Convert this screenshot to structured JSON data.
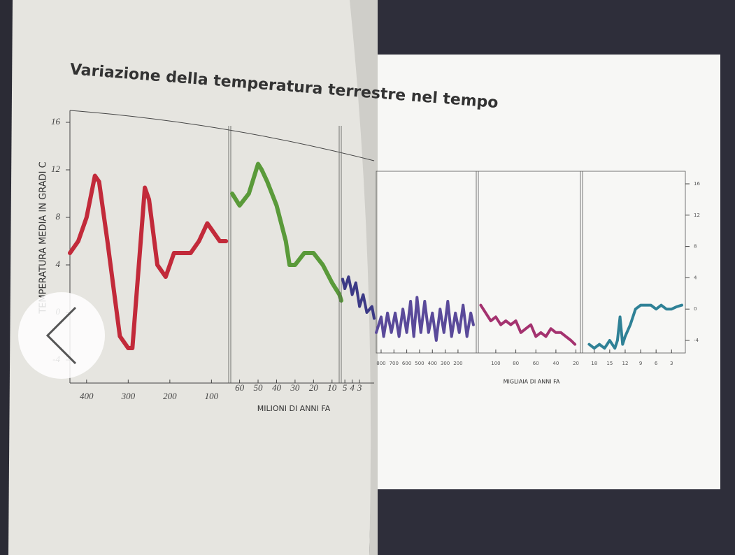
{
  "chart_data": {
    "type": "line",
    "title": "Variazione della temperatura terrestre nel tempo",
    "y_label": "TEMPERATURA MEDIA IN GRADI C",
    "x_label_millions": "MILIONI DI ANNI FA",
    "x_label_thousands": "MIGLIAIA DI ANNI FA",
    "ylim": [
      -6,
      17
    ],
    "yticks": [
      -4,
      0,
      4,
      8,
      12,
      16
    ],
    "panels": [
      {
        "color": "#c22a3a",
        "xlim": [
          440,
          62
        ],
        "xticks": [
          400,
          300,
          200,
          100
        ],
        "x": [
          440,
          420,
          400,
          380,
          370,
          350,
          320,
          300,
          290,
          270,
          260,
          250,
          230,
          210,
          190,
          170,
          150,
          130,
          110,
          100,
          80,
          65
        ],
        "values": [
          5,
          6,
          8,
          11.5,
          11,
          6,
          -2,
          -3,
          -3,
          6,
          10.5,
          9.5,
          4,
          3,
          5,
          5,
          5,
          6,
          7.5,
          7,
          6,
          6
        ]
      },
      {
        "color": "#5a9a3a",
        "xlim": [
          64,
          5
        ],
        "xticks": [
          60,
          50,
          40,
          30,
          20,
          10
        ],
        "x": [
          64,
          60,
          55,
          50,
          48,
          45,
          40,
          35,
          33,
          30,
          25,
          20,
          15,
          10,
          6,
          5
        ],
        "values": [
          10,
          9,
          10,
          12.5,
          12,
          11,
          9,
          6,
          4,
          4,
          5,
          5,
          4,
          2.5,
          1.5,
          1
        ]
      },
      {
        "color": "#3c3a86",
        "xlim": [
          5.3,
          1
        ],
        "xticks": [
          5,
          4,
          3
        ],
        "x": [
          5.3,
          5,
          4.5,
          4,
          3.5,
          3,
          2.5,
          2,
          1.3,
          1
        ],
        "values": [
          2.8,
          2,
          3,
          1.5,
          2.5,
          0.5,
          1.5,
          0,
          0.5,
          -0.5
        ]
      },
      {
        "color": "#5a4a9a",
        "xlim": [
          838,
          74
        ],
        "xticks": [
          800,
          700,
          600,
          500,
          400,
          300,
          200
        ],
        "x": [
          838,
          800,
          780,
          750,
          720,
          690,
          660,
          630,
          600,
          570,
          545,
          520,
          490,
          460,
          430,
          400,
          370,
          340,
          310,
          280,
          250,
          220,
          190,
          160,
          130,
          100,
          80
        ],
        "values": [
          -3,
          -1,
          -3.5,
          -0.5,
          -3,
          -0.5,
          -3.5,
          0,
          -3,
          1,
          -3.5,
          1.5,
          -3,
          1,
          -3,
          -0.5,
          -4,
          0,
          -3,
          1,
          -3.5,
          -0.5,
          -3,
          0.5,
          -3.5,
          -0.5,
          -2
        ]
      },
      {
        "color": "#a4326f",
        "xlim": [
          116,
          19
        ],
        "xticks": [
          100,
          80,
          60,
          40,
          20
        ],
        "x": [
          115,
          110,
          105,
          100,
          95,
          90,
          85,
          80,
          75,
          70,
          65,
          60,
          55,
          50,
          45,
          40,
          35,
          30,
          25,
          21
        ],
        "values": [
          0.5,
          -0.5,
          -1.5,
          -1,
          -2,
          -1.5,
          -2,
          -1.5,
          -3,
          -2.5,
          -2,
          -3.5,
          -3,
          -3.5,
          -2.5,
          -3,
          -3,
          -3.5,
          -4,
          -4.5
        ]
      },
      {
        "color": "#2f8196",
        "xlim": [
          20,
          1
        ],
        "xticks": [
          18,
          15,
          12,
          9,
          6,
          3
        ],
        "x": [
          19,
          18,
          17,
          16,
          15,
          14,
          13.5,
          13,
          12.5,
          12,
          11,
          10,
          9,
          8,
          7,
          6,
          5,
          4,
          3,
          2,
          1
        ],
        "values": [
          -4.5,
          -5,
          -4.5,
          -5,
          -4,
          -5,
          -4,
          -1,
          -4.5,
          -3.5,
          -2,
          0,
          0.5,
          0.5,
          0.5,
          0,
          0.5,
          0,
          0,
          0.3,
          0.5
        ]
      }
    ]
  }
}
